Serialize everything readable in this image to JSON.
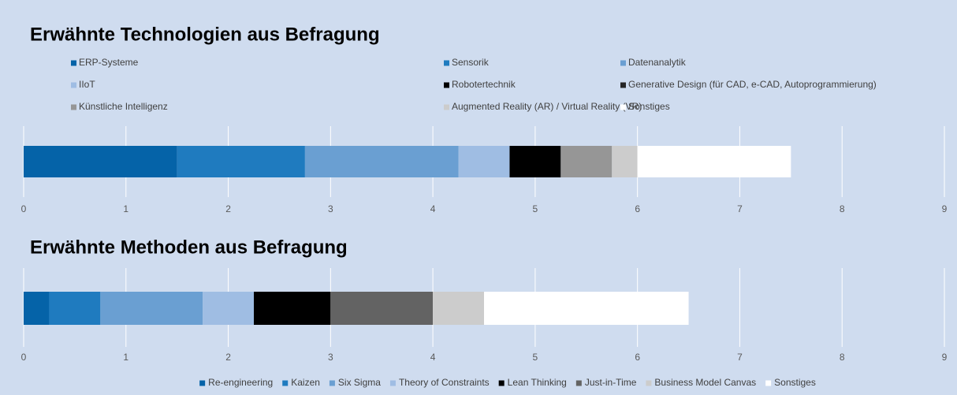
{
  "chart_data": [
    {
      "type": "bar",
      "orientation": "horizontal",
      "stacked": true,
      "title": "Erwähnte Technologien aus Befragung",
      "series": [
        {
          "name": "ERP-Systeme",
          "color": "#0563a8",
          "values": [
            1.5
          ]
        },
        {
          "name": "Sensorik",
          "color": "#1f7bbf",
          "values": [
            1.25
          ]
        },
        {
          "name": "Datenanalytik",
          "color": "#6a9fd2",
          "values": [
            1.5
          ]
        },
        {
          "name": "IIoT",
          "color": "#9fbde3",
          "values": [
            0.5
          ]
        },
        {
          "name": "Robotertechnik",
          "color": "#000000",
          "values": [
            0.5
          ]
        },
        {
          "name": "Generative Design (für CAD, e-CAD, Autoprogrammierung)",
          "color": "#262626",
          "values": [
            0
          ]
        },
        {
          "name": "Künstliche Intelligenz",
          "color": "#969696",
          "values": [
            0.5
          ]
        },
        {
          "name": "Augmented Reality (AR) / Virtual Reality (VR)",
          "color": "#cccccc",
          "values": [
            0.25
          ]
        },
        {
          "name": "Sonstiges",
          "color": "#ffffff",
          "values": [
            1.5
          ]
        }
      ],
      "xlim": [
        0,
        9
      ],
      "xticks": [
        0,
        1,
        2,
        3,
        4,
        5,
        6,
        7,
        8,
        9
      ],
      "grid": true,
      "legend": "top"
    },
    {
      "type": "bar",
      "orientation": "horizontal",
      "stacked": true,
      "title": "Erwähnte Methoden aus Befragung",
      "series": [
        {
          "name": "Re-engineering",
          "color": "#0563a8",
          "values": [
            0.25
          ]
        },
        {
          "name": "Kaizen",
          "color": "#1f7bbf",
          "values": [
            0.5
          ]
        },
        {
          "name": "Six Sigma",
          "color": "#6a9fd2",
          "values": [
            1.0
          ]
        },
        {
          "name": "Theory of Constraints",
          "color": "#9fbde3",
          "values": [
            0.5
          ]
        },
        {
          "name": "Lean Thinking",
          "color": "#000000",
          "values": [
            0.75
          ]
        },
        {
          "name": "Just-in-Time",
          "color": "#636363",
          "values": [
            1.0
          ]
        },
        {
          "name": "Business Model Canvas",
          "color": "#cccccc",
          "values": [
            0.5
          ]
        },
        {
          "name": "Sonstiges",
          "color": "#ffffff",
          "values": [
            2.0
          ]
        }
      ],
      "xlim": [
        0,
        9
      ],
      "xticks": [
        0,
        1,
        2,
        3,
        4,
        5,
        6,
        7,
        8,
        9
      ],
      "grid": true,
      "legend": "bottom"
    }
  ]
}
